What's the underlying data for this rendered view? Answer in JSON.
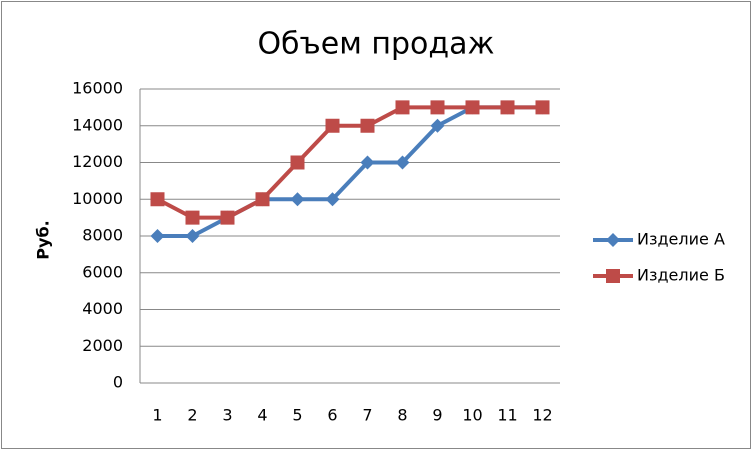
{
  "chart_data": {
    "type": "line",
    "title": "Объем продаж",
    "y_label": "Руб.",
    "categories": [
      "1",
      "2",
      "3",
      "4",
      "5",
      "6",
      "7",
      "8",
      "9",
      "10",
      "11",
      "12"
    ],
    "series": [
      {
        "name": "Изделие А",
        "color": "#4a7ebb",
        "marker": "diamond",
        "values": [
          8000,
          8000,
          9000,
          10000,
          10000,
          10000,
          12000,
          12000,
          14000,
          15000,
          15000,
          15000
        ]
      },
      {
        "name": "Изделие Б",
        "color": "#be4b48",
        "marker": "square",
        "values": [
          10000,
          9000,
          9000,
          10000,
          12000,
          14000,
          14000,
          15000,
          15000,
          15000,
          15000,
          15000
        ]
      }
    ],
    "ylim": [
      0,
      16000
    ],
    "yticks": [
      0,
      2000,
      4000,
      6000,
      8000,
      10000,
      12000,
      14000,
      16000
    ],
    "grid": true,
    "legend": "right"
  }
}
